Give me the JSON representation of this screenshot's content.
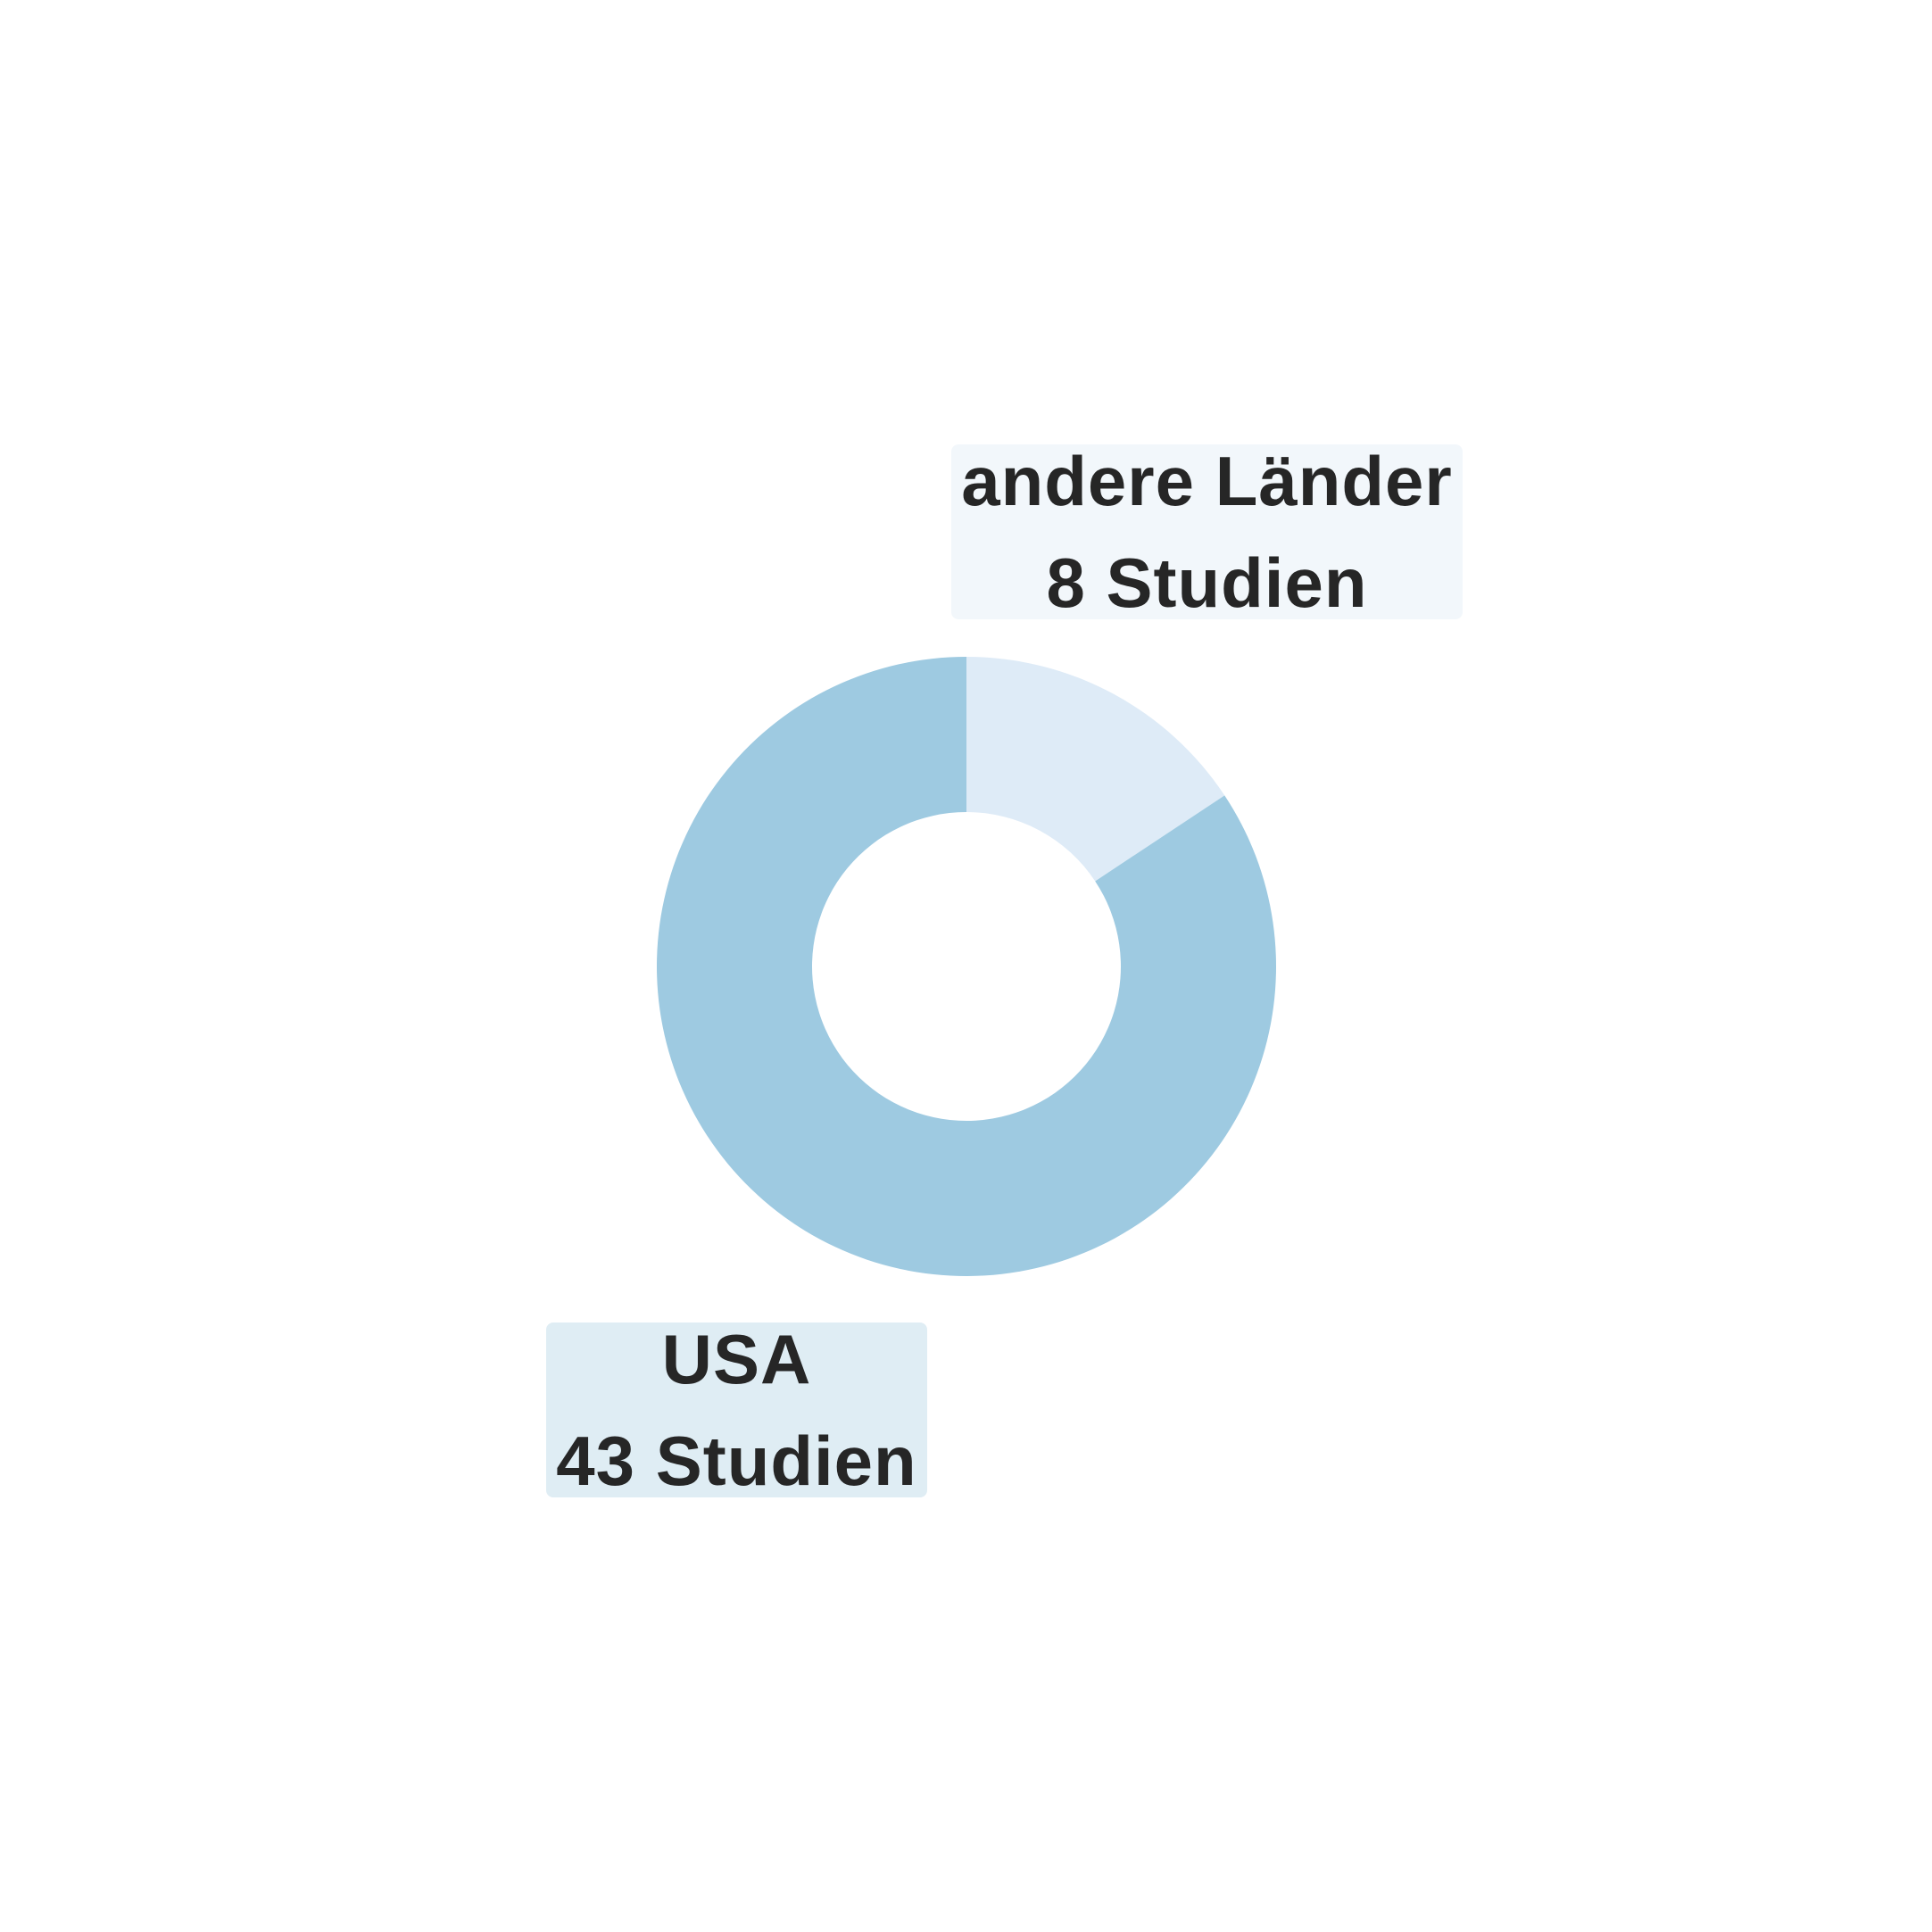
{
  "chart_data": {
    "type": "pie",
    "donut": true,
    "start_angle": "12 o'clock, clockwise",
    "slices": [
      {
        "label": "andere Länder",
        "value": 8,
        "value_text": "8 Studien",
        "color": "#deebf7",
        "box_color": "#f2f7fb"
      },
      {
        "label": "USA",
        "value": 43,
        "value_text": "43 Studien",
        "color": "#9ecae1",
        "box_color": "#dfedf4"
      }
    ]
  }
}
